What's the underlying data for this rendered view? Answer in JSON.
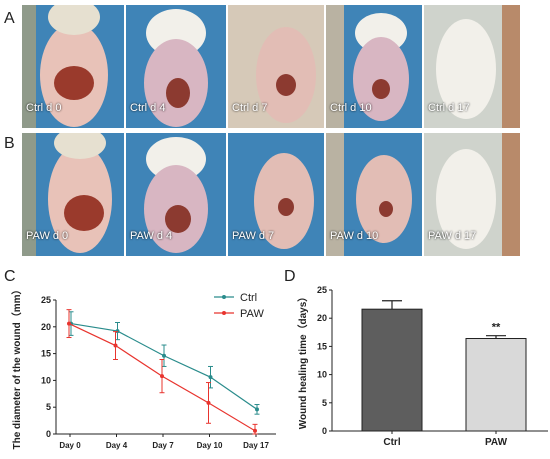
{
  "panels": {
    "A": "A",
    "B": "B",
    "C": "C",
    "D": "D"
  },
  "rows": [
    {
      "captions": [
        "Ctrl d 0",
        "Ctrl d 4",
        "Ctrl d 7",
        "Ctrl d 10",
        "Ctrl d 17"
      ]
    },
    {
      "captions": [
        "PAW d 0",
        "PAW d 4",
        "PAW d 7",
        "PAW d 10",
        "PAW d 17"
      ]
    }
  ],
  "colors": {
    "ctrl": "#2a8c8c",
    "paw": "#e8342e",
    "bar_ctrl": "#5e5e5e",
    "bar_paw": "#d9d9d9",
    "drape": "#3f84b7",
    "mouse": "#e8c2b8",
    "wound": "#9a3a2c"
  },
  "chart_data": [
    {
      "type": "line",
      "categories": [
        "Day 0",
        "Day 4",
        "Day 7",
        "Day 10",
        "Day 17"
      ],
      "ylabel": "The diameter of the wound（mm）",
      "ylim": [
        0,
        25
      ],
      "yticks": [
        "0",
        "5",
        "10",
        "15",
        "20",
        "25"
      ],
      "legend_position": "top-right",
      "series": [
        {
          "name": "Ctrl",
          "values": [
            20.6,
            19.2,
            14.6,
            10.6,
            4.6
          ],
          "errors": [
            2.2,
            1.6,
            2.0,
            2.0,
            0.9
          ]
        },
        {
          "name": "PAW",
          "values": [
            20.6,
            16.5,
            10.8,
            5.8,
            0.6
          ],
          "errors": [
            2.6,
            2.6,
            3.1,
            3.8,
            1.2
          ]
        }
      ]
    },
    {
      "type": "bar",
      "categories": [
        "Ctrl",
        "PAW"
      ],
      "values": [
        21.6,
        16.4
      ],
      "errors": [
        1.5,
        0.5
      ],
      "ylabel": "Wound healing time（days）",
      "ylim": [
        0,
        25
      ],
      "yticks": [
        "0",
        "5",
        "10",
        "15",
        "20",
        "25"
      ],
      "annotation": "**"
    }
  ]
}
